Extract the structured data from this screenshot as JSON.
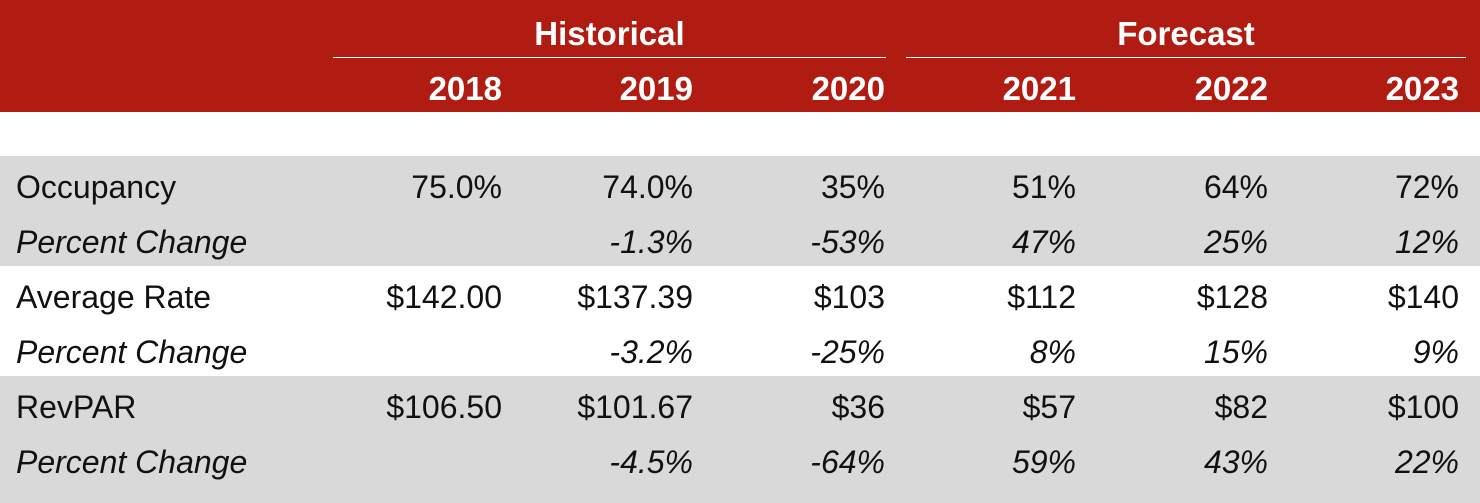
{
  "colors": {
    "header_bg": "#b01c12",
    "header_text": "#ffffff",
    "band_gray": "#d9d9d9",
    "band_white": "#ffffff"
  },
  "chart_data": {
    "type": "table",
    "groups": [
      {
        "label": "Historical",
        "years": [
          "2018",
          "2019",
          "2020"
        ]
      },
      {
        "label": "Forecast",
        "years": [
          "2021",
          "2022",
          "2023"
        ]
      }
    ],
    "columns": [
      "2018",
      "2019",
      "2020",
      "2021",
      "2022",
      "2023"
    ],
    "rows": [
      {
        "label": "Occupancy",
        "values": [
          "75.0%",
          "74.0%",
          "35%",
          "51%",
          "64%",
          "72%"
        ]
      },
      {
        "label": "Percent Change",
        "values": [
          "",
          "-1.3%",
          "-53%",
          "47%",
          "25%",
          "12%"
        ]
      },
      {
        "label": "Average Rate",
        "values": [
          "$142.00",
          "$137.39",
          "$103",
          "$112",
          "$128",
          "$140"
        ]
      },
      {
        "label": "Percent Change",
        "values": [
          "",
          "-3.2%",
          "-25%",
          "8%",
          "15%",
          "9%"
        ]
      },
      {
        "label": "RevPAR",
        "values": [
          "$106.50",
          "$101.67",
          "$36",
          "$57",
          "$82",
          "$100"
        ]
      },
      {
        "label": "Percent Change",
        "values": [
          "",
          "-4.5%",
          "-64%",
          "59%",
          "43%",
          "22%"
        ]
      }
    ]
  }
}
